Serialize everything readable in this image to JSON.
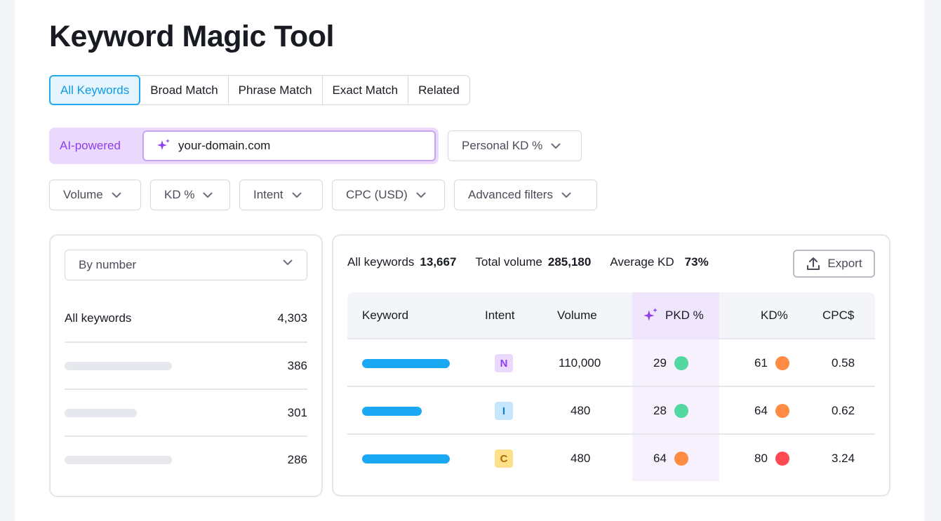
{
  "title": "Keyword Magic Tool",
  "tabs": [
    {
      "label": "All Keywords",
      "active": true
    },
    {
      "label": "Broad Match",
      "active": false
    },
    {
      "label": "Phrase Match",
      "active": false
    },
    {
      "label": "Exact Match",
      "active": false
    },
    {
      "label": "Related",
      "active": false
    }
  ],
  "ai": {
    "label": "AI-powered",
    "input_value": "your-domain.com",
    "icon": "sparkle-icon"
  },
  "personal_kd": "Personal KD %",
  "filters": [
    "Volume",
    "KD %",
    "Intent",
    "CPC (USD)",
    "Advanced filters"
  ],
  "sidebar": {
    "sort_label": "By number",
    "all_label": "All keywords",
    "all_count": "4,303",
    "groups": [
      {
        "count": "386"
      },
      {
        "count": "301"
      },
      {
        "count": "286"
      }
    ]
  },
  "summary": {
    "all_keywords_label": "All keywords",
    "all_keywords_value": "13,667",
    "total_volume_label": "Total volume",
    "total_volume_value": "285,180",
    "avg_kd_label": "Average KD",
    "avg_kd_value": "73%"
  },
  "export_label": "Export",
  "table": {
    "headers": {
      "keyword": "Keyword",
      "intent": "Intent",
      "volume": "Volume",
      "pkd": "PKD %",
      "kd": "KD%",
      "cpc": "CPC$"
    },
    "rows": [
      {
        "intent": "N",
        "volume": "110,000",
        "pkd": "29",
        "pkd_level": "easy",
        "kd": "61",
        "kd_level": "hard",
        "cpc": "0.58"
      },
      {
        "intent": "I",
        "volume": "480",
        "pkd": "28",
        "pkd_level": "easy",
        "kd": "64",
        "kd_level": "hard",
        "cpc": "0.62"
      },
      {
        "intent": "C",
        "volume": "480",
        "pkd": "64",
        "pkd_level": "hard",
        "kd": "80",
        "kd_level": "very-hard",
        "cpc": "3.24"
      }
    ]
  },
  "colors": {
    "accent_blue": "#1aa8f3",
    "ai_purple": "#8d3ff0",
    "intent_n_bg": "#ead9fc",
    "intent_n_fg": "#8d3ff0",
    "intent_i_bg": "#c5e6fb",
    "intent_i_fg": "#0b7fc9",
    "intent_c_bg": "#ffe08a",
    "intent_c_fg": "#b06a00",
    "dot_green": "#52d8a0",
    "dot_orange": "#ff8c42",
    "dot_red": "#ff4953"
  }
}
